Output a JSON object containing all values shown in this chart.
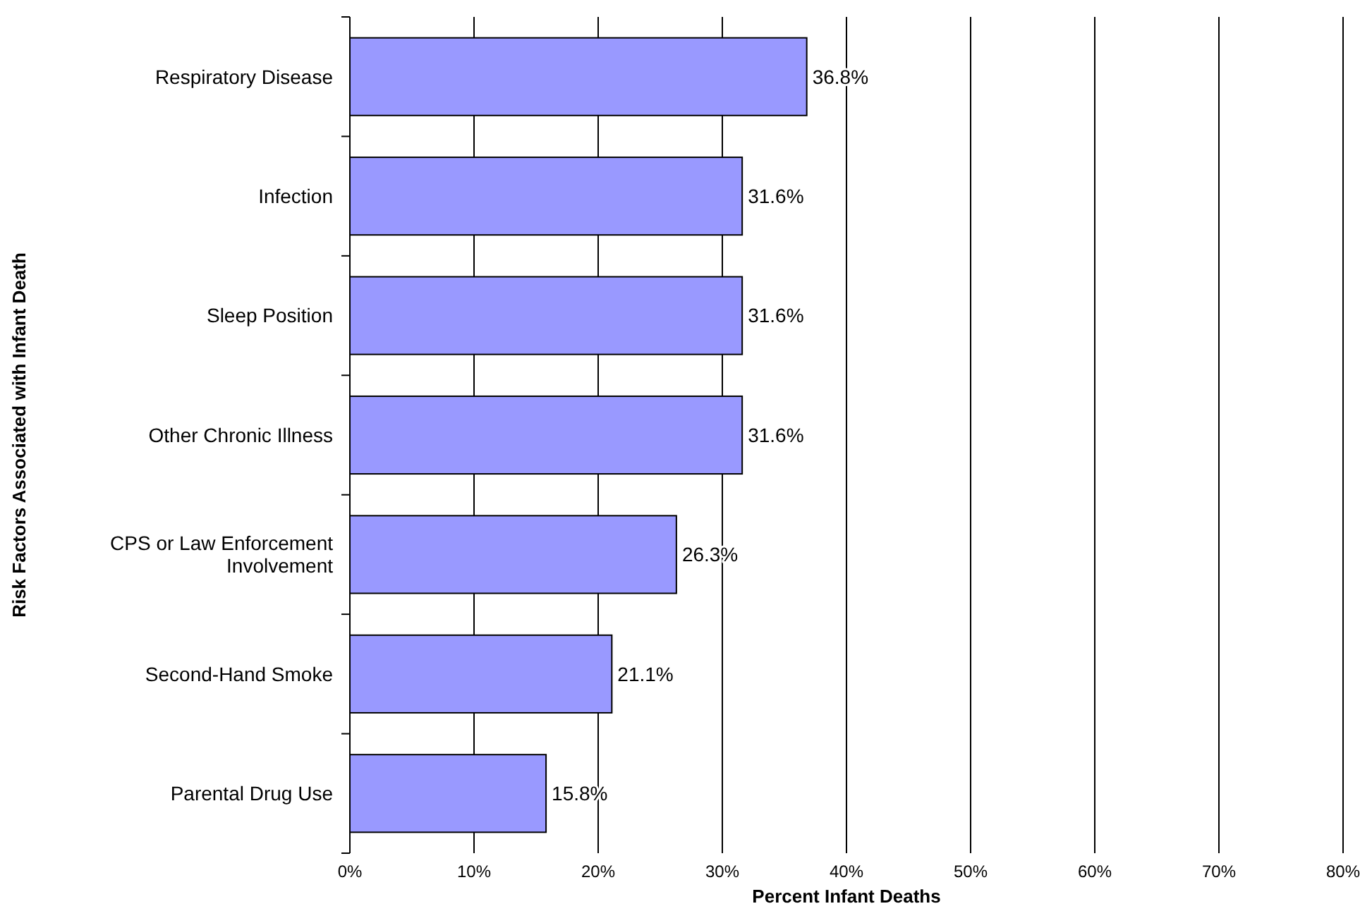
{
  "chart_data": {
    "type": "bar",
    "orientation": "horizontal",
    "xlabel": "Percent Infant Deaths",
    "ylabel": "Risk Factors Associated with Infant Death",
    "categories": [
      "Respiratory Disease",
      "Infection",
      "Sleep Position",
      "Other Chronic Illness",
      "CPS or Law Enforcement Involvement",
      "Second-Hand Smoke",
      "Parental Drug Use"
    ],
    "values": [
      36.8,
      31.6,
      31.6,
      31.6,
      26.3,
      21.1,
      15.8
    ],
    "value_labels": [
      "36.8%",
      "31.6%",
      "31.6%",
      "31.6%",
      "26.3%",
      "21.1%",
      "15.8%"
    ],
    "color": "#9999ff",
    "xlim": [
      0,
      80
    ],
    "xticks": [
      {
        "value": 0,
        "label": "0%"
      },
      {
        "value": 10,
        "label": "10%"
      },
      {
        "value": 20,
        "label": "20%"
      },
      {
        "value": 30,
        "label": "30%"
      },
      {
        "value": 40,
        "label": "40%"
      },
      {
        "value": 50,
        "label": "50%"
      },
      {
        "value": 60,
        "label": "60%"
      },
      {
        "value": 70,
        "label": "70%"
      },
      {
        "value": 80,
        "label": "80%"
      }
    ],
    "grid": "x"
  }
}
